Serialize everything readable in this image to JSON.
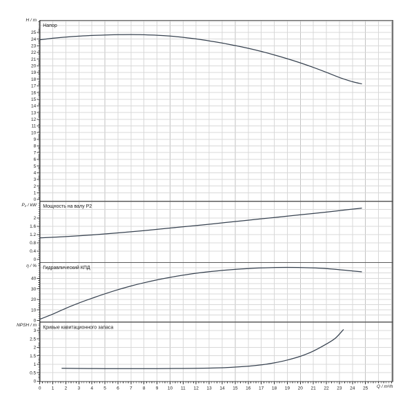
{
  "page": {
    "background": "#ffffff",
    "description": "Pump performance curves diagram"
  },
  "axis_labels": {
    "head": "H / m",
    "power": "P₂ / kW",
    "efficiency": "η / %",
    "npsh": "NPSH / m",
    "flow": "Q / m³/h"
  },
  "colors": {
    "curve": "#35404e",
    "grid": "#d8d8d8",
    "grid_major": "#c2c2c2",
    "frame": "#5a5a5a",
    "bevel": "#b9b9b9",
    "axis": "#3c3c3c",
    "tick": "#333333",
    "text": "#1a1a1a",
    "background": "#ffffff"
  },
  "chart_data": {
    "type": "line",
    "layout": "4-stacked-panels-shared-x",
    "grid": true,
    "x_axis": {
      "label": "Q / m³/h",
      "min": 0,
      "max": 27.1,
      "tick_min": 0,
      "tick_max": 25,
      "tick_step": 1,
      "minor_step": 0.2,
      "grid_step": 1
    },
    "panels": [
      {
        "id": "head",
        "title": "Напор",
        "ylabel": "H / m",
        "ymin": 0,
        "ymax": 26.8,
        "tick_max": 25,
        "tick_step": 1,
        "grid_step": 1,
        "minor_step": 0.2,
        "series": [
          {
            "name": "H(Q)",
            "x": [
              0,
              1,
              2,
              3,
              4,
              5,
              6,
              7,
              8,
              9,
              10,
              11,
              12,
              13,
              14,
              15,
              16,
              17,
              18,
              19,
              20,
              21,
              22,
              23,
              24,
              24.7
            ],
            "y": [
              23.9,
              24.12,
              24.3,
              24.44,
              24.54,
              24.61,
              24.65,
              24.67,
              24.64,
              24.57,
              24.45,
              24.26,
              24.02,
              23.73,
              23.4,
              23.03,
              22.62,
              22.15,
              21.63,
              21.06,
              20.44,
              19.76,
              19.02,
              18.25,
              17.62,
              17.3
            ]
          }
        ]
      },
      {
        "id": "power",
        "title": "Мощность на валу P2",
        "ylabel": "P₂ / kW",
        "ymin": 0,
        "ymax": 2.8,
        "tick_max": 2,
        "tick_step": 0.4,
        "grid_step": 0.4,
        "minor_step": 0.1,
        "series": [
          {
            "name": "P2(Q)",
            "x": [
              0,
              2,
              4,
              6,
              8,
              10,
              12,
              14,
              16,
              18,
              20,
              22,
              24,
              24.7
            ],
            "y": [
              1.04,
              1.1,
              1.18,
              1.28,
              1.39,
              1.51,
              1.63,
              1.76,
              1.89,
              2.02,
              2.15,
              2.28,
              2.42,
              2.47
            ]
          }
        ]
      },
      {
        "id": "efficiency",
        "title": "Гидравлический КПД",
        "ylabel": "η / %",
        "ymin": 0,
        "ymax": 55,
        "tick_max": 40,
        "tick_step": 10,
        "grid_step": 5,
        "minor_step": 2,
        "series": [
          {
            "name": "eta(Q)",
            "x": [
              0,
              1,
              2,
              3,
              4,
              5,
              6,
              7,
              8,
              9,
              10,
              11,
              12,
              13,
              14,
              15,
              16,
              17,
              18,
              19,
              20,
              21,
              22,
              23,
              24,
              24.7
            ],
            "y": [
              1,
              6,
              11.5,
              16.5,
              21,
              25.3,
              29.2,
              32.7,
              35.8,
              38.5,
              40.9,
              43,
              44.8,
              46.3,
              47.5,
              48.5,
              49.3,
              49.9,
              50.3,
              50.4,
              50.3,
              49.9,
              49.2,
              48.2,
              47,
              46.2
            ]
          }
        ]
      },
      {
        "id": "npsh",
        "title": "Кривые кавитационного запаса",
        "ylabel": "NPSH / m",
        "ymin": 0,
        "ymax": 3.5,
        "tick_max": 3,
        "tick_step": 0.5,
        "grid_step": 0.5,
        "minor_step": 0.1,
        "series": [
          {
            "name": "NPSH(Q)",
            "x": [
              1.7,
              3,
              5,
              7,
              9,
              11,
              13,
              14,
              15,
              16,
              17,
              18,
              19,
              20,
              21,
              22,
              22.7,
              23.3
            ],
            "y": [
              0.76,
              0.75,
              0.74,
              0.74,
              0.74,
              0.75,
              0.77,
              0.79,
              0.83,
              0.88,
              0.96,
              1.08,
              1.25,
              1.47,
              1.78,
              2.2,
              2.55,
              3.05
            ]
          }
        ]
      }
    ]
  }
}
